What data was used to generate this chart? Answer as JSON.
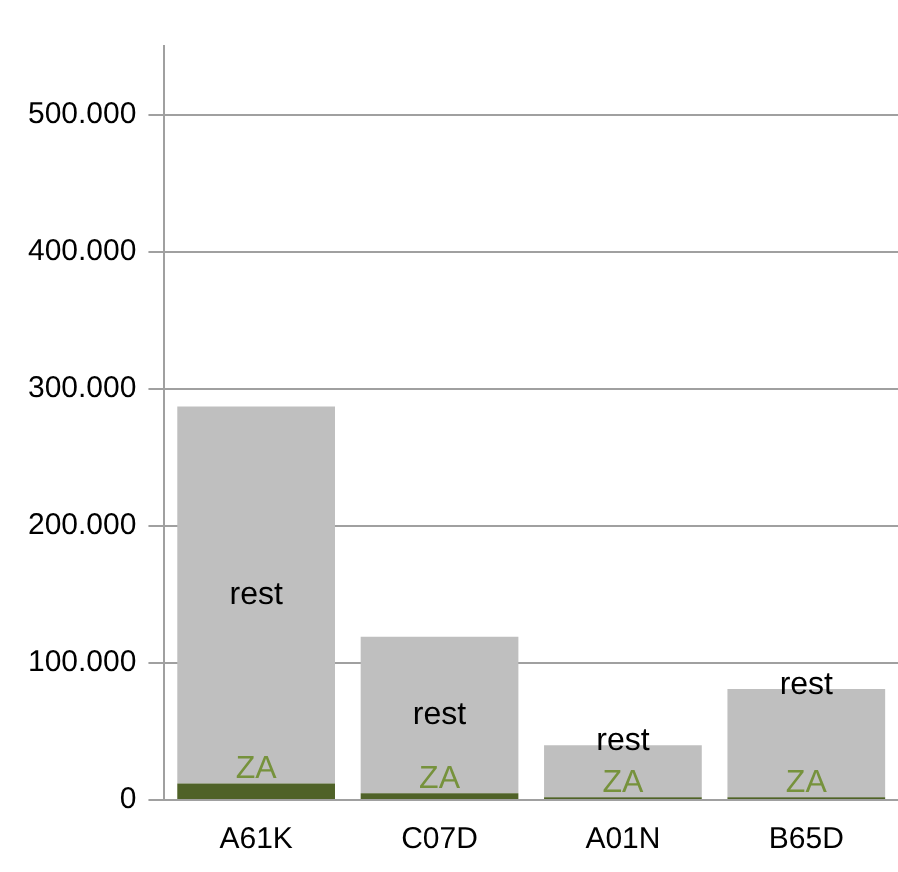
{
  "chart_data": {
    "type": "bar",
    "stacked": true,
    "categories": [
      "A61K",
      "C07D",
      "A01N",
      "B65D"
    ],
    "series": [
      {
        "name": "ZA",
        "color": "#4f6228",
        "values": [
          12000,
          5000,
          2000,
          2000
        ]
      },
      {
        "name": "rest",
        "color": "#bfbfbf",
        "values": [
          275000,
          114000,
          38000,
          79000
        ]
      }
    ],
    "ylim": [
      0,
      550000
    ],
    "yticks": [
      {
        "value": 0,
        "label": "0"
      },
      {
        "value": 100000,
        "label": "100.000"
      },
      {
        "value": 200000,
        "label": "200.000"
      },
      {
        "value": 300000,
        "label": "300.000"
      },
      {
        "value": 400000,
        "label": "400.000"
      },
      {
        "value": 500000,
        "label": "500.000"
      }
    ],
    "grid": "y",
    "legend": false
  }
}
